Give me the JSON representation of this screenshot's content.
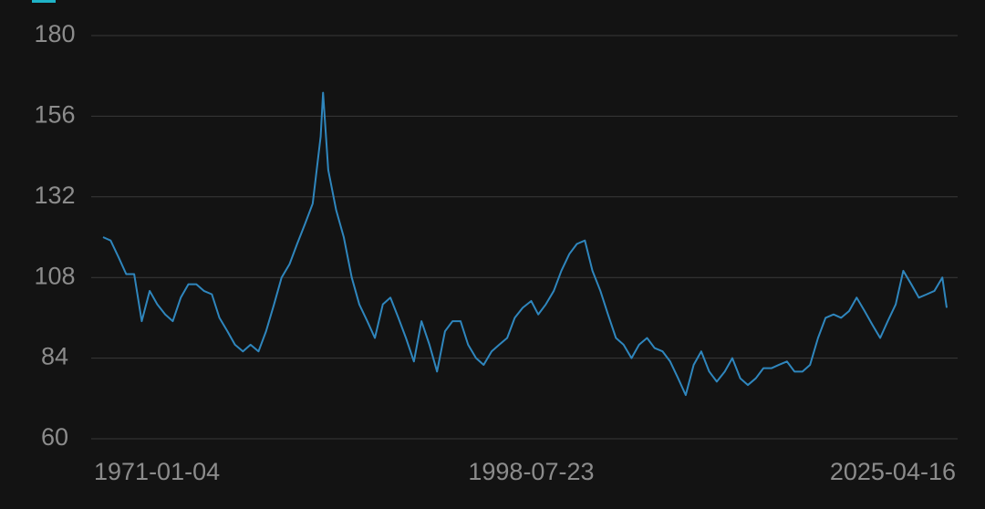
{
  "chart_data": {
    "type": "line",
    "x": [
      "1971-01-04",
      "1971-07-01",
      "1972-01-04",
      "1972-07-01",
      "1973-01-04",
      "1973-07-01",
      "1974-01-04",
      "1974-07-01",
      "1975-01-04",
      "1975-07-01",
      "1976-01-04",
      "1976-07-01",
      "1977-01-04",
      "1977-07-01",
      "1978-01-04",
      "1978-07-01",
      "1979-01-04",
      "1979-07-01",
      "1980-01-04",
      "1980-07-01",
      "1981-01-04",
      "1981-07-01",
      "1982-01-04",
      "1982-07-01",
      "1983-01-04",
      "1983-07-01",
      "1984-01-04",
      "1984-07-01",
      "1985-01-04",
      "1985-03-01",
      "1985-07-01",
      "1986-01-04",
      "1986-07-01",
      "1987-01-04",
      "1987-07-01",
      "1988-01-04",
      "1988-07-01",
      "1989-01-04",
      "1989-07-01",
      "1990-01-04",
      "1990-07-01",
      "1991-01-04",
      "1991-07-01",
      "1992-01-04",
      "1992-07-01",
      "1993-01-04",
      "1993-07-01",
      "1994-01-04",
      "1994-07-01",
      "1995-01-04",
      "1995-07-01",
      "1996-01-04",
      "1996-07-01",
      "1997-01-04",
      "1997-07-01",
      "1998-01-04",
      "1998-07-23",
      "1999-01-04",
      "1999-07-01",
      "2000-01-04",
      "2000-07-01",
      "2001-01-04",
      "2001-07-01",
      "2002-01-04",
      "2002-07-01",
      "2003-01-04",
      "2003-07-01",
      "2004-01-04",
      "2004-07-01",
      "2005-01-04",
      "2005-07-01",
      "2006-01-04",
      "2006-07-01",
      "2007-01-04",
      "2007-07-01",
      "2008-01-04",
      "2008-07-01",
      "2009-01-04",
      "2009-07-01",
      "2010-01-04",
      "2010-07-01",
      "2011-01-04",
      "2011-07-01",
      "2012-01-04",
      "2012-07-01",
      "2013-01-04",
      "2013-07-01",
      "2014-01-04",
      "2014-07-01",
      "2015-01-04",
      "2015-07-01",
      "2016-01-04",
      "2016-07-01",
      "2017-01-04",
      "2017-07-01",
      "2018-01-04",
      "2018-07-01",
      "2019-01-04",
      "2019-07-01",
      "2020-01-04",
      "2020-07-01",
      "2021-01-04",
      "2021-07-01",
      "2022-01-04",
      "2022-07-01",
      "2023-01-04",
      "2023-07-01",
      "2024-01-04",
      "2024-07-01",
      "2025-01-04",
      "2025-04-16"
    ],
    "series": [
      {
        "color": "#2f86bd",
        "values": [
          120,
          119,
          114,
          109,
          109,
          95,
          104,
          100,
          97,
          95,
          102,
          106,
          106,
          104,
          103,
          96,
          92,
          88,
          86,
          88,
          86,
          92,
          100,
          108,
          112,
          118,
          124,
          130,
          150,
          163,
          140,
          128,
          120,
          108,
          100,
          95,
          90,
          100,
          102,
          96,
          90,
          83,
          95,
          88,
          80,
          92,
          95,
          95,
          88,
          84,
          82,
          86,
          88,
          90,
          96,
          99,
          101,
          97,
          100,
          104,
          110,
          115,
          118,
          119,
          110,
          104,
          97,
          90,
          88,
          84,
          88,
          90,
          87,
          86,
          83,
          78,
          73,
          82,
          86,
          80,
          77,
          80,
          84,
          78,
          76,
          78,
          81,
          81,
          82,
          83,
          80,
          80,
          82,
          90,
          96,
          97,
          96,
          98,
          102,
          98,
          94,
          90,
          95,
          100,
          110,
          106,
          102,
          103,
          104,
          108,
          99
        ]
      }
    ],
    "xlim": [
      "1971-01-04",
      "2025-04-16"
    ],
    "xticks": [
      "1971-01-04",
      "1998-07-23",
      "2025-04-16"
    ],
    "ylim": [
      60,
      180
    ],
    "yticks": [
      60,
      84,
      108,
      132,
      156,
      180
    ],
    "grid": true
  }
}
